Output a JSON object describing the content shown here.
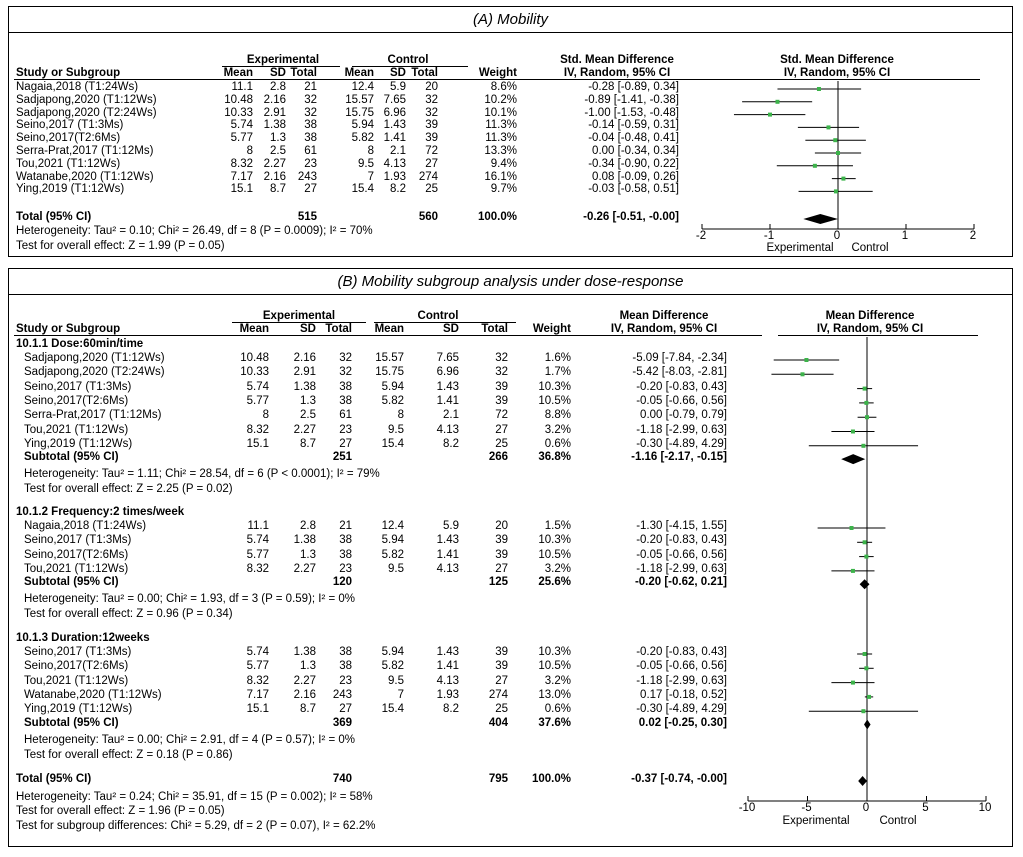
{
  "chart_data": [
    {
      "type": "table",
      "title": "(A)  Mobility",
      "measure": "Std. Mean Difference",
      "method": "IV, Random, 95% CI",
      "headers": {
        "study": "Study or Subgroup",
        "exp": "Experimental",
        "ctrl": "Control",
        "mean": "Mean",
        "sd": "SD",
        "total": "Total",
        "weight": "Weight"
      },
      "axis": {
        "min": -2,
        "max": 2,
        "ticks": [
          "-2",
          "-1",
          "0",
          "1",
          "2"
        ],
        "left_label": "Experimental",
        "right_label": "Control"
      },
      "rows": [
        {
          "study": "Nagaia,2018 (T1:24Ws)",
          "em": "11.1",
          "esd": "2.8",
          "en": "21",
          "cm": "12.4",
          "csd": "5.9",
          "cn": "20",
          "w": "8.6%",
          "ci": "-0.28 [-0.89, 0.34]",
          "est": -0.28,
          "lo": -0.89,
          "hi": 0.34
        },
        {
          "study": "Sadjapong,2020 (T1:12Ws)",
          "em": "10.48",
          "esd": "2.16",
          "en": "32",
          "cm": "15.57",
          "csd": "7.65",
          "cn": "32",
          "w": "10.2%",
          "ci": "-0.89 [-1.41, -0.38]",
          "est": -0.89,
          "lo": -1.41,
          "hi": -0.38
        },
        {
          "study": "Sadjapong,2020 (T2:24Ws)",
          "em": "10.33",
          "esd": "2.91",
          "en": "32",
          "cm": "15.75",
          "csd": "6.96",
          "cn": "32",
          "w": "10.1%",
          "ci": "-1.00 [-1.53, -0.48]",
          "est": -1.0,
          "lo": -1.53,
          "hi": -0.48
        },
        {
          "study": "Seino,2017 (T1:3Ms)",
          "em": "5.74",
          "esd": "1.38",
          "en": "38",
          "cm": "5.94",
          "csd": "1.43",
          "cn": "39",
          "w": "11.3%",
          "ci": "-0.14 [-0.59, 0.31]",
          "est": -0.14,
          "lo": -0.59,
          "hi": 0.31
        },
        {
          "study": "Seino,2017(T2:6Ms)",
          "em": "5.77",
          "esd": "1.3",
          "en": "38",
          "cm": "5.82",
          "csd": "1.41",
          "cn": "39",
          "w": "11.3%",
          "ci": "-0.04 [-0.48, 0.41]",
          "est": -0.04,
          "lo": -0.48,
          "hi": 0.41
        },
        {
          "study": "Serra-Prat,2017 (T1:12Ms)",
          "em": "8",
          "esd": "2.5",
          "en": "61",
          "cm": "8",
          "csd": "2.1",
          "cn": "72",
          "w": "13.3%",
          "ci": "0.00 [-0.34, 0.34]",
          "est": 0.0,
          "lo": -0.34,
          "hi": 0.34
        },
        {
          "study": "Tou,2021 (T1:12Ws)",
          "em": "8.32",
          "esd": "2.27",
          "en": "23",
          "cm": "9.5",
          "csd": "4.13",
          "cn": "27",
          "w": "9.4%",
          "ci": "-0.34 [-0.90, 0.22]",
          "est": -0.34,
          "lo": -0.9,
          "hi": 0.22
        },
        {
          "study": "Watanabe,2020 (T1:12Ws)",
          "em": "7.17",
          "esd": "2.16",
          "en": "243",
          "cm": "7",
          "csd": "1.93",
          "cn": "274",
          "w": "16.1%",
          "ci": "0.08 [-0.09, 0.26]",
          "est": 0.08,
          "lo": -0.09,
          "hi": 0.26
        },
        {
          "study": "Ying,2019 (T1:12Ws)",
          "em": "15.1",
          "esd": "8.7",
          "en": "27",
          "cm": "15.4",
          "csd": "8.2",
          "cn": "25",
          "w": "9.7%",
          "ci": "-0.03 [-0.58, 0.51]",
          "est": -0.03,
          "lo": -0.58,
          "hi": 0.51
        }
      ],
      "total": {
        "label": "Total (95% CI)",
        "en": "515",
        "cn": "560",
        "w": "100.0%",
        "ci": "-0.26 [-0.51, -0.00]",
        "est": -0.26,
        "lo": -0.51,
        "hi": -0.0
      },
      "heterogeneity": "Heterogeneity: Tau² = 0.10; Chi² = 26.49, df = 8 (P = 0.0009); I² = 70%",
      "overall": "Test for overall effect: Z = 1.99 (P = 0.05)"
    },
    {
      "type": "table",
      "title": "(B)  Mobility subgroup analysis under dose-response",
      "measure": "Mean Difference",
      "method": "IV, Random, 95% CI",
      "headers": {
        "study": "Study or Subgroup",
        "exp": "Experimental",
        "ctrl": "Control",
        "mean": "Mean",
        "sd": "SD",
        "total": "Total",
        "weight": "Weight"
      },
      "axis": {
        "min": -10,
        "max": 10,
        "ticks": [
          "-10",
          "-5",
          "0",
          "5",
          "10"
        ],
        "left_label": "Experimental",
        "right_label": "Control"
      },
      "subgroups": [
        {
          "name": "10.1.1 Dose:60min/time",
          "rows": [
            {
              "study": "Sadjapong,2020 (T1:12Ws)",
              "em": "10.48",
              "esd": "2.16",
              "en": "32",
              "cm": "15.57",
              "csd": "7.65",
              "cn": "32",
              "w": "1.6%",
              "ci": "-5.09 [-7.84, -2.34]",
              "est": -5.09,
              "lo": -7.84,
              "hi": -2.34
            },
            {
              "study": "Sadjapong,2020 (T2:24Ws)",
              "em": "10.33",
              "esd": "2.91",
              "en": "32",
              "cm": "15.75",
              "csd": "6.96",
              "cn": "32",
              "w": "1.7%",
              "ci": "-5.42 [-8.03, -2.81]",
              "est": -5.42,
              "lo": -8.03,
              "hi": -2.81
            },
            {
              "study": "Seino,2017 (T1:3Ms)",
              "em": "5.74",
              "esd": "1.38",
              "en": "38",
              "cm": "5.94",
              "csd": "1.43",
              "cn": "39",
              "w": "10.3%",
              "ci": "-0.20 [-0.83, 0.43]",
              "est": -0.2,
              "lo": -0.83,
              "hi": 0.43
            },
            {
              "study": "Seino,2017(T2:6Ms)",
              "em": "5.77",
              "esd": "1.3",
              "en": "38",
              "cm": "5.82",
              "csd": "1.41",
              "cn": "39",
              "w": "10.5%",
              "ci": "-0.05 [-0.66, 0.56]",
              "est": -0.05,
              "lo": -0.66,
              "hi": 0.56
            },
            {
              "study": "Serra-Prat,2017 (T1:12Ms)",
              "em": "8",
              "esd": "2.5",
              "en": "61",
              "cm": "8",
              "csd": "2.1",
              "cn": "72",
              "w": "8.8%",
              "ci": "0.00 [-0.79, 0.79]",
              "est": 0.0,
              "lo": -0.79,
              "hi": 0.79
            },
            {
              "study": "Tou,2021 (T1:12Ws)",
              "em": "8.32",
              "esd": "2.27",
              "en": "23",
              "cm": "9.5",
              "csd": "4.13",
              "cn": "27",
              "w": "3.2%",
              "ci": "-1.18 [-2.99, 0.63]",
              "est": -1.18,
              "lo": -2.99,
              "hi": 0.63
            },
            {
              "study": "Ying,2019 (T1:12Ws)",
              "em": "15.1",
              "esd": "8.7",
              "en": "27",
              "cm": "15.4",
              "csd": "8.2",
              "cn": "25",
              "w": "0.6%",
              "ci": "-0.30 [-4.89, 4.29]",
              "est": -0.3,
              "lo": -4.89,
              "hi": 4.29
            }
          ],
          "subtotal": {
            "label": "Subtotal (95% CI)",
            "en": "251",
            "cn": "266",
            "w": "36.8%",
            "ci": "-1.16 [-2.17, -0.15]",
            "est": -1.16,
            "lo": -2.17,
            "hi": -0.15
          },
          "heterogeneity": "Heterogeneity: Tau² = 1.11; Chi² = 28.54, df = 6 (P < 0.0001); I² = 79%",
          "overall": "Test for overall effect: Z = 2.25 (P = 0.02)"
        },
        {
          "name": "10.1.2 Frequency:2 times/week",
          "rows": [
            {
              "study": "Nagaia,2018 (T1:24Ws)",
              "em": "11.1",
              "esd": "2.8",
              "en": "21",
              "cm": "12.4",
              "csd": "5.9",
              "cn": "20",
              "w": "1.5%",
              "ci": "-1.30 [-4.15, 1.55]",
              "est": -1.3,
              "lo": -4.15,
              "hi": 1.55
            },
            {
              "study": "Seino,2017 (T1:3Ms)",
              "em": "5.74",
              "esd": "1.38",
              "en": "38",
              "cm": "5.94",
              "csd": "1.43",
              "cn": "39",
              "w": "10.3%",
              "ci": "-0.20 [-0.83, 0.43]",
              "est": -0.2,
              "lo": -0.83,
              "hi": 0.43
            },
            {
              "study": "Seino,2017(T2:6Ms)",
              "em": "5.77",
              "esd": "1.3",
              "en": "38",
              "cm": "5.82",
              "csd": "1.41",
              "cn": "39",
              "w": "10.5%",
              "ci": "-0.05 [-0.66, 0.56]",
              "est": -0.05,
              "lo": -0.66,
              "hi": 0.56
            },
            {
              "study": "Tou,2021 (T1:12Ws)",
              "em": "8.32",
              "esd": "2.27",
              "en": "23",
              "cm": "9.5",
              "csd": "4.13",
              "cn": "27",
              "w": "3.2%",
              "ci": "-1.18 [-2.99, 0.63]",
              "est": -1.18,
              "lo": -2.99,
              "hi": 0.63
            }
          ],
          "subtotal": {
            "label": "Subtotal (95% CI)",
            "en": "120",
            "cn": "125",
            "w": "25.6%",
            "ci": "-0.20 [-0.62, 0.21]",
            "est": -0.2,
            "lo": -0.62,
            "hi": 0.21
          },
          "heterogeneity": "Heterogeneity: Tau² = 0.00; Chi² = 1.93, df = 3 (P = 0.59); I² = 0%",
          "overall": "Test for overall effect: Z = 0.96 (P = 0.34)"
        },
        {
          "name": "10.1.3 Duration:12weeks",
          "rows": [
            {
              "study": "Seino,2017 (T1:3Ms)",
              "em": "5.74",
              "esd": "1.38",
              "en": "38",
              "cm": "5.94",
              "csd": "1.43",
              "cn": "39",
              "w": "10.3%",
              "ci": "-0.20 [-0.83, 0.43]",
              "est": -0.2,
              "lo": -0.83,
              "hi": 0.43
            },
            {
              "study": "Seino,2017(T2:6Ms)",
              "em": "5.77",
              "esd": "1.3",
              "en": "38",
              "cm": "5.82",
              "csd": "1.41",
              "cn": "39",
              "w": "10.5%",
              "ci": "-0.05 [-0.66, 0.56]",
              "est": -0.05,
              "lo": -0.66,
              "hi": 0.56
            },
            {
              "study": "Tou,2021 (T1:12Ws)",
              "em": "8.32",
              "esd": "2.27",
              "en": "23",
              "cm": "9.5",
              "csd": "4.13",
              "cn": "27",
              "w": "3.2%",
              "ci": "-1.18 [-2.99, 0.63]",
              "est": -1.18,
              "lo": -2.99,
              "hi": 0.63
            },
            {
              "study": "Watanabe,2020 (T1:12Ws)",
              "em": "7.17",
              "esd": "2.16",
              "en": "243",
              "cm": "7",
              "csd": "1.93",
              "cn": "274",
              "w": "13.0%",
              "ci": "0.17 [-0.18, 0.52]",
              "est": 0.17,
              "lo": -0.18,
              "hi": 0.52
            },
            {
              "study": "Ying,2019 (T1:12Ws)",
              "em": "15.1",
              "esd": "8.7",
              "en": "27",
              "cm": "15.4",
              "csd": "8.2",
              "cn": "25",
              "w": "0.6%",
              "ci": "-0.30 [-4.89, 4.29]",
              "est": -0.3,
              "lo": -4.89,
              "hi": 4.29
            }
          ],
          "subtotal": {
            "label": "Subtotal (95% CI)",
            "en": "369",
            "cn": "404",
            "w": "37.6%",
            "ci": "0.02 [-0.25, 0.30]",
            "est": 0.02,
            "lo": -0.25,
            "hi": 0.3
          },
          "heterogeneity": "Heterogeneity: Tau² = 0.00; Chi² = 2.91, df = 4 (P = 0.57); I² = 0%",
          "overall": "Test for overall effect: Z = 0.18 (P = 0.86)"
        }
      ],
      "total": {
        "label": "Total (95% CI)",
        "en": "740",
        "cn": "795",
        "w": "100.0%",
        "ci": "-0.37 [-0.74, -0.00]",
        "est": -0.37,
        "lo": -0.74,
        "hi": -0.0
      },
      "heterogeneity": "Heterogeneity: Tau² = 0.24; Chi² = 35.91, df = 15 (P = 0.002); I² = 58%",
      "overall": "Test for overall effect: Z = 1.96 (P = 0.05)",
      "subgroup_diff": "Test for subgroup differences: Chi² = 5.29, df = 2 (P = 0.07), I² = 62.2%"
    }
  ],
  "colors": {
    "marker": "#3cb34a",
    "line": "#000000"
  }
}
